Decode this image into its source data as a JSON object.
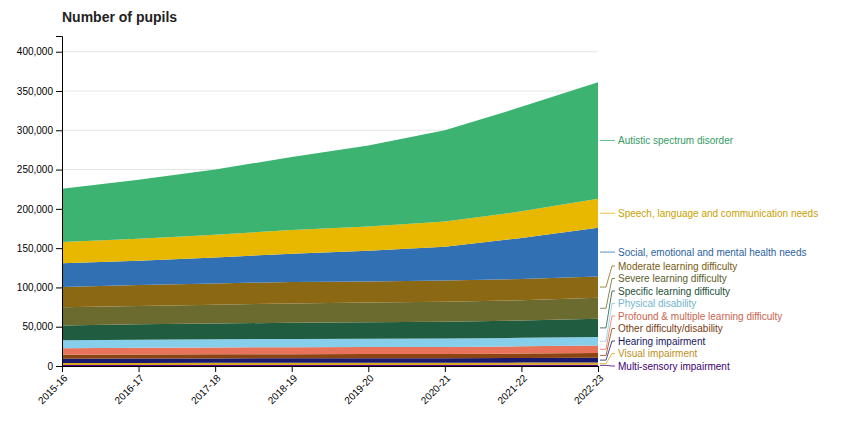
{
  "chart_data": {
    "type": "area",
    "title": "Number of pupils",
    "stacked": true,
    "grid": true,
    "categories": [
      "2015-16",
      "2016-17",
      "2017-18",
      "2018-19",
      "2019-20",
      "2020-21",
      "2021-22",
      "2022-23"
    ],
    "series": [
      {
        "name": "Multi-sensory impairment",
        "color": "#4b0082",
        "values": [
          1200,
          1300,
          1300,
          1400,
          1400,
          1400,
          1500,
          1600
        ]
      },
      {
        "name": "Visual impairment",
        "color": "#DAA520",
        "values": [
          2500,
          2600,
          2700,
          2700,
          2700,
          2700,
          2800,
          2900
        ]
      },
      {
        "name": "Hearing impairment",
        "color": "#191970",
        "values": [
          5500,
          5600,
          5700,
          5700,
          5700,
          5700,
          5800,
          6000
        ]
      },
      {
        "name": "Other difficulty/disability",
        "color": "#8B4513",
        "values": [
          5000,
          5100,
          5200,
          5300,
          5400,
          5500,
          5700,
          6000
        ]
      },
      {
        "name": "Profound & multiple learning difficulty",
        "color": "#E8735A",
        "values": [
          8500,
          8700,
          8800,
          8900,
          9000,
          9000,
          9200,
          9500
        ]
      },
      {
        "name": "Physical disability",
        "color": "#87CEEB",
        "values": [
          10000,
          10200,
          10400,
          10500,
          10500,
          10600,
          10800,
          11000
        ]
      },
      {
        "name": "Specific learning difficulty",
        "color": "#1F5C40",
        "values": [
          19000,
          19500,
          20000,
          20500,
          21000,
          21500,
          22000,
          23000
        ]
      },
      {
        "name": "Severe learning difficulty",
        "color": "#6B6B2F",
        "values": [
          23000,
          23500,
          24000,
          24500,
          25000,
          25500,
          26000,
          27000
        ]
      },
      {
        "name": "Moderate learning difficulty",
        "color": "#8B6914",
        "values": [
          26000,
          26500,
          27000,
          27500,
          27000,
          27000,
          27000,
          27000
        ]
      },
      {
        "name": "Social, emotional and mental health needs",
        "color": "#3070b3",
        "values": [
          30000,
          31000,
          33000,
          36000,
          39000,
          43000,
          52000,
          62000
        ]
      },
      {
        "name": "Speech, language and communication needs",
        "color": "#E8B800",
        "values": [
          27000,
          28000,
          29000,
          30000,
          31000,
          32000,
          34000,
          37000
        ]
      },
      {
        "name": "Autistic spectrum disorder",
        "color": "#3CB371",
        "values": [
          68000,
          75000,
          83000,
          93000,
          103000,
          116000,
          133000,
          148000
        ]
      }
    ],
    "ylim": [
      0,
      420000
    ],
    "yticks": [
      0,
      {
        "value": 50000,
        "label": "50,000"
      },
      {
        "value": 100000,
        "label": "100,000"
      },
      {
        "value": 150000,
        "label": "150,000"
      },
      {
        "value": 200000,
        "label": "200,000"
      },
      {
        "value": 250000,
        "label": "250,000"
      },
      {
        "value": 300000,
        "label": "300,000"
      },
      {
        "value": 350000,
        "label": "350,000"
      },
      {
        "value": 400000,
        "label": "400,000"
      }
    ]
  }
}
